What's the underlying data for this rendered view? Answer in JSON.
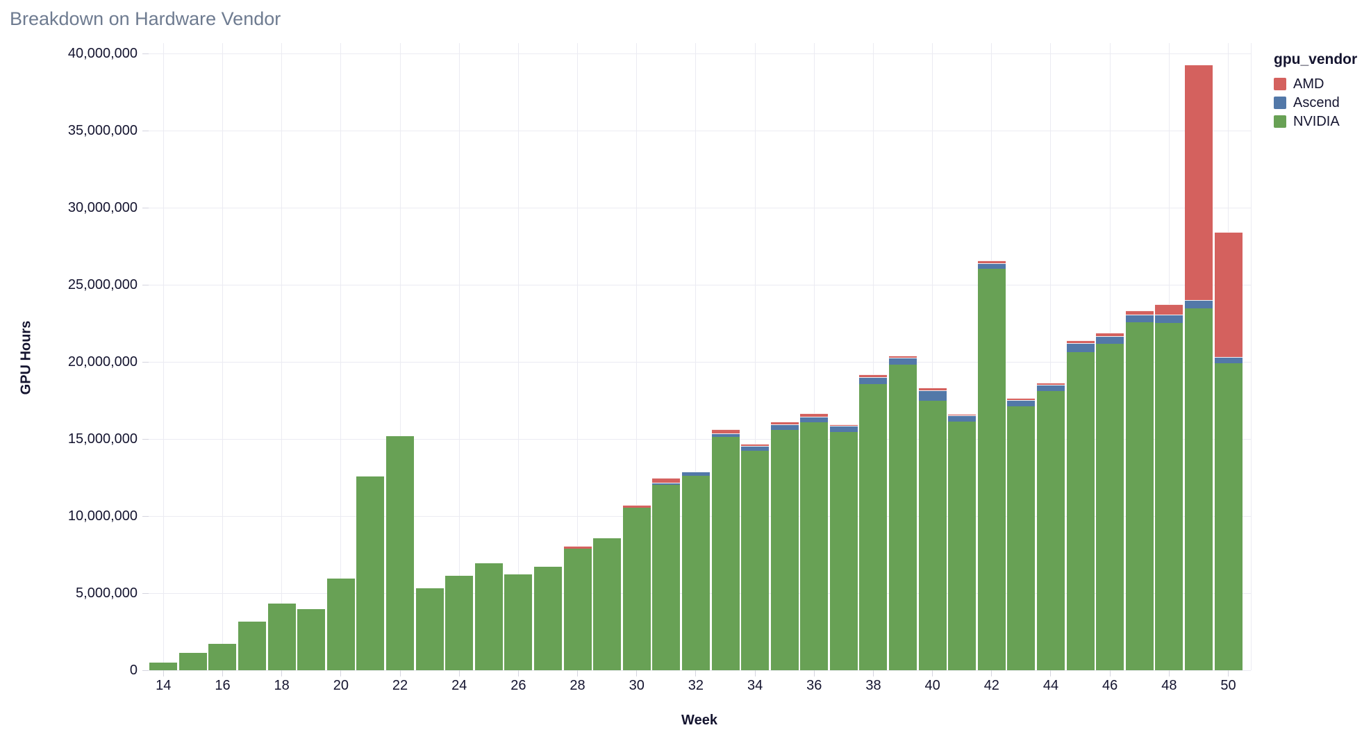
{
  "title": "Breakdown on Hardware Vendor",
  "axes": {
    "x_label": "Week",
    "y_label": "GPU Hours"
  },
  "legend": {
    "title": "gpu_vendor",
    "items": [
      {
        "label": "AMD",
        "color": "#d4615e"
      },
      {
        "label": "Ascend",
        "color": "#5278a8"
      },
      {
        "label": "NVIDIA",
        "color": "#68a155"
      }
    ]
  },
  "colors": {
    "amd": "#d4615e",
    "ascend": "#5278a8",
    "nvidia": "#68a155",
    "title_text": "#6e7b90",
    "axis_text": "#14142f",
    "gridline": "#ebebf2"
  },
  "chart_data": {
    "type": "bar",
    "stacked": true,
    "title": "Breakdown on Hardware Vendor",
    "xlabel": "Week",
    "ylabel": "GPU Hours",
    "ylim": [
      0,
      40000000
    ],
    "grid": true,
    "legend_position": "right",
    "x": [
      14,
      15,
      16,
      17,
      18,
      19,
      20,
      21,
      22,
      23,
      24,
      25,
      26,
      27,
      28,
      29,
      30,
      31,
      32,
      33,
      34,
      35,
      36,
      37,
      38,
      39,
      40,
      41,
      42,
      43,
      44,
      45,
      46,
      47,
      48,
      49,
      50
    ],
    "x_tick_labels": [
      14,
      16,
      18,
      20,
      22,
      24,
      26,
      28,
      30,
      32,
      34,
      36,
      38,
      40,
      42,
      44,
      46,
      48,
      50
    ],
    "y_ticks": [
      {
        "value": 0,
        "label": "0"
      },
      {
        "value": 5000000,
        "label": "5,000,000"
      },
      {
        "value": 10000000,
        "label": "10,000,000"
      },
      {
        "value": 15000000,
        "label": "15,000,000"
      },
      {
        "value": 20000000,
        "label": "20,000,000"
      },
      {
        "value": 25000000,
        "label": "25,000,000"
      },
      {
        "value": 30000000,
        "label": "30,000,000"
      },
      {
        "value": 35000000,
        "label": "35,000,000"
      },
      {
        "value": 40000000,
        "label": "40,000,000"
      }
    ],
    "stack_order": [
      "NVIDIA",
      "Ascend",
      "AMD"
    ],
    "series": [
      {
        "name": "NVIDIA",
        "color": "#68a155",
        "values": [
          500000,
          1130000,
          1700000,
          3150000,
          4320000,
          3960000,
          5950000,
          12550000,
          15200000,
          5320000,
          6130000,
          6940000,
          6220000,
          6720000,
          7880000,
          8560000,
          10540000,
          12010000,
          12610000,
          15120000,
          14220000,
          15600000,
          16070000,
          15440000,
          18550000,
          19820000,
          17490000,
          16140000,
          26020000,
          17120000,
          18100000,
          20650000,
          21170000,
          22570000,
          22520000,
          23470000,
          19900000
        ]
      },
      {
        "name": "Ascend",
        "color": "#5278a8",
        "values": [
          0,
          0,
          0,
          0,
          0,
          0,
          0,
          0,
          0,
          0,
          0,
          0,
          0,
          0,
          0,
          0,
          0,
          150000,
          270000,
          230000,
          340000,
          360000,
          370000,
          430000,
          480000,
          450000,
          650000,
          380000,
          360000,
          420000,
          410000,
          570000,
          500000,
          510000,
          530000,
          550000,
          410000
        ]
      },
      {
        "name": "AMD",
        "color": "#d4615e",
        "values": [
          0,
          0,
          0,
          0,
          0,
          0,
          0,
          0,
          0,
          0,
          0,
          0,
          0,
          0,
          180000,
          0,
          200000,
          300000,
          0,
          270000,
          110000,
          170000,
          230000,
          90000,
          170000,
          150000,
          180000,
          120000,
          190000,
          140000,
          150000,
          180000,
          210000,
          270000,
          700000,
          15270000,
          8110000
        ]
      }
    ]
  }
}
